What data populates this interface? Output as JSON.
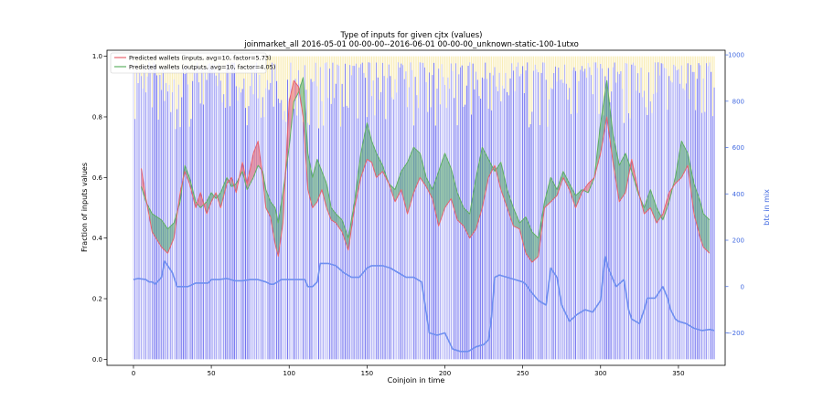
{
  "chart_data": {
    "type": "line",
    "title": "Type of inputs for given cjtx (values)",
    "subtitle": "joinmarket_all 2016-05-01 00-00-00--2016-06-01 00-00-00_unknown-static-100-1utxo",
    "xlabel": "Coinjoin in time",
    "ylabel": "Fraction of inputs values",
    "y2label": "btc in mix",
    "xlim": [
      -17,
      380
    ],
    "ylim": [
      -0.02,
      1.02
    ],
    "y2lim": [
      -340,
      1020
    ],
    "xticks": [
      "0",
      "50",
      "100",
      "150",
      "200",
      "250",
      "300",
      "350"
    ],
    "yticks": [
      "0.0",
      "0.2",
      "0.4",
      "0.6",
      "0.8",
      "1.0"
    ],
    "y2ticks": [
      "−200",
      "0",
      "200",
      "400",
      "600",
      "800",
      "1000"
    ],
    "legend_position": "top-left",
    "grid": false,
    "colors": {
      "inputs_line": "#e8636e",
      "outputs_line": "#5fb064",
      "fill_inputs_above": "#e8636e",
      "fill_outputs_above": "#52a56c",
      "bars": "#3434e8",
      "bars_top": "#f6e69c",
      "btc_line": "#6f8ff0",
      "right_axis": "#4169e1"
    },
    "series": [
      {
        "name": "Predicted wallets (inputs, avg=10, factor=5.73)",
        "x": [
          5,
          8,
          12,
          18,
          22,
          26,
          30,
          33,
          36,
          40,
          43,
          47,
          50,
          53,
          56,
          60,
          63,
          66,
          70,
          73,
          77,
          80,
          83,
          85,
          88,
          91,
          93,
          96,
          100,
          103,
          106,
          109,
          112,
          115,
          118,
          121,
          124,
          127,
          130,
          134,
          138,
          142,
          146,
          150,
          153,
          156,
          160,
          164,
          168,
          172,
          176,
          180,
          184,
          188,
          192,
          196,
          200,
          204,
          208,
          212,
          216,
          220,
          224,
          228,
          232,
          236,
          240,
          244,
          248,
          252,
          256,
          260,
          264,
          268,
          272,
          276,
          280,
          284,
          288,
          292,
          296,
          300,
          304,
          308,
          312,
          316,
          320,
          324,
          328,
          332,
          336,
          340,
          344,
          348,
          352,
          356,
          360,
          364,
          366,
          370
        ],
        "values": [
          0.63,
          0.53,
          0.42,
          0.37,
          0.35,
          0.4,
          0.55,
          0.62,
          0.58,
          0.5,
          0.55,
          0.48,
          0.52,
          0.55,
          0.5,
          0.58,
          0.6,
          0.55,
          0.65,
          0.58,
          0.68,
          0.72,
          0.6,
          0.5,
          0.47,
          0.38,
          0.34,
          0.45,
          0.85,
          0.92,
          0.9,
          0.8,
          0.56,
          0.5,
          0.52,
          0.56,
          0.5,
          0.46,
          0.45,
          0.42,
          0.36,
          0.5,
          0.6,
          0.66,
          0.65,
          0.6,
          0.62,
          0.58,
          0.52,
          0.56,
          0.48,
          0.55,
          0.6,
          0.57,
          0.53,
          0.44,
          0.5,
          0.53,
          0.46,
          0.44,
          0.4,
          0.43,
          0.5,
          0.6,
          0.64,
          0.56,
          0.5,
          0.44,
          0.43,
          0.35,
          0.32,
          0.34,
          0.5,
          0.52,
          0.54,
          0.6,
          0.56,
          0.5,
          0.55,
          0.58,
          0.6,
          0.68,
          0.8,
          0.65,
          0.52,
          0.55,
          0.66,
          0.56,
          0.48,
          0.5,
          0.45,
          0.48,
          0.55,
          0.58,
          0.6,
          0.64,
          0.48,
          0.4,
          0.37,
          0.35
        ]
      },
      {
        "name": "Predicted wallets (outputs, avg=10, factor=4.05)",
        "x": [
          5,
          8,
          12,
          18,
          22,
          26,
          30,
          33,
          36,
          40,
          43,
          47,
          50,
          53,
          56,
          60,
          63,
          66,
          70,
          73,
          77,
          80,
          83,
          85,
          88,
          91,
          93,
          96,
          100,
          103,
          106,
          109,
          112,
          115,
          118,
          121,
          124,
          127,
          130,
          134,
          138,
          142,
          146,
          150,
          153,
          156,
          160,
          164,
          168,
          172,
          176,
          180,
          184,
          188,
          192,
          196,
          200,
          204,
          208,
          212,
          216,
          220,
          224,
          228,
          232,
          236,
          240,
          244,
          248,
          252,
          256,
          260,
          264,
          268,
          272,
          276,
          280,
          284,
          288,
          292,
          296,
          300,
          304,
          308,
          312,
          316,
          320,
          324,
          328,
          332,
          336,
          340,
          344,
          348,
          352,
          356,
          360,
          364,
          366,
          370
        ],
        "values": [
          0.57,
          0.52,
          0.48,
          0.46,
          0.43,
          0.45,
          0.52,
          0.64,
          0.6,
          0.52,
          0.5,
          0.52,
          0.55,
          0.53,
          0.55,
          0.6,
          0.57,
          0.58,
          0.62,
          0.56,
          0.6,
          0.64,
          0.62,
          0.56,
          0.52,
          0.5,
          0.45,
          0.55,
          0.7,
          0.85,
          0.88,
          0.93,
          0.68,
          0.6,
          0.66,
          0.62,
          0.58,
          0.5,
          0.48,
          0.46,
          0.4,
          0.52,
          0.68,
          0.78,
          0.72,
          0.68,
          0.64,
          0.58,
          0.56,
          0.62,
          0.65,
          0.7,
          0.68,
          0.6,
          0.56,
          0.62,
          0.68,
          0.63,
          0.55,
          0.5,
          0.48,
          0.6,
          0.7,
          0.66,
          0.62,
          0.65,
          0.56,
          0.5,
          0.45,
          0.47,
          0.42,
          0.4,
          0.52,
          0.6,
          0.56,
          0.62,
          0.58,
          0.54,
          0.56,
          0.55,
          0.6,
          0.78,
          0.92,
          0.74,
          0.64,
          0.68,
          0.62,
          0.55,
          0.5,
          0.56,
          0.5,
          0.46,
          0.52,
          0.6,
          0.72,
          0.68,
          0.58,
          0.52,
          0.48,
          0.46
        ]
      },
      {
        "axis": "right",
        "x": [
          0,
          3,
          8,
          10,
          12,
          14,
          18,
          20,
          25,
          28,
          35,
          40,
          48,
          50,
          55,
          60,
          65,
          70,
          75,
          80,
          85,
          88,
          90,
          95,
          100,
          105,
          108,
          110,
          112,
          115,
          118,
          120,
          125,
          130,
          135,
          140,
          145,
          150,
          153,
          155,
          160,
          165,
          170,
          175,
          180,
          185,
          190,
          195,
          200,
          205,
          210,
          215,
          220,
          225,
          228,
          230,
          232,
          235,
          240,
          245,
          250,
          252,
          255,
          260,
          265,
          268,
          272,
          275,
          280,
          285,
          290,
          295,
          300,
          302,
          303,
          305,
          308,
          310,
          315,
          318,
          320,
          325,
          328,
          330,
          335,
          340,
          343,
          345,
          348,
          350,
          355,
          360,
          365,
          370,
          373
        ],
        "values": [
          30,
          35,
          30,
          20,
          20,
          10,
          40,
          110,
          60,
          0,
          0,
          15,
          15,
          30,
          30,
          35,
          25,
          25,
          30,
          30,
          20,
          10,
          10,
          30,
          30,
          30,
          30,
          30,
          0,
          0,
          20,
          100,
          100,
          90,
          60,
          40,
          40,
          80,
          90,
          90,
          90,
          80,
          60,
          40,
          40,
          20,
          -200,
          -210,
          -200,
          -270,
          -280,
          -280,
          -260,
          -250,
          -230,
          -130,
          40,
          50,
          40,
          30,
          20,
          10,
          -20,
          -60,
          -80,
          80,
          40,
          -80,
          -150,
          -120,
          -100,
          -110,
          -60,
          80,
          130,
          80,
          30,
          0,
          30,
          -100,
          -140,
          -160,
          -100,
          -50,
          -50,
          0,
          -50,
          -100,
          -140,
          -150,
          -160,
          -180,
          -190,
          -185,
          -190
        ]
      }
    ]
  },
  "legend": [
    {
      "label": "Predicted wallets (inputs, avg=10, factor=5.73)",
      "color": "#e8636e"
    },
    {
      "label": "Predicted wallets (outputs, avg=10, factor=4.05)",
      "color": "#5fb064"
    }
  ]
}
